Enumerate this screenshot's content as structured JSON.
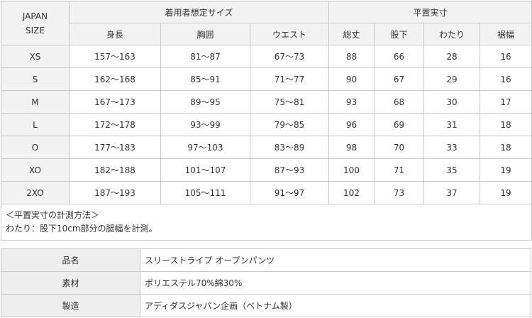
{
  "size_table": {
    "corner": "JAPAN\nSIZE",
    "group1": "着用者想定サイズ",
    "group2": "平置実寸",
    "columns": [
      "身長",
      "胸囲",
      "ウエスト",
      "総丈",
      "股下",
      "わたり",
      "裾幅"
    ],
    "rows": [
      [
        "XS",
        "157〜163",
        "81〜87",
        "67〜73",
        "88",
        "66",
        "28",
        "16"
      ],
      [
        "S",
        "162〜168",
        "85〜91",
        "71〜77",
        "90",
        "67",
        "29",
        "16"
      ],
      [
        "M",
        "167〜173",
        "89〜95",
        "75〜81",
        "93",
        "68",
        "30",
        "17"
      ],
      [
        "L",
        "172〜178",
        "93〜99",
        "79〜85",
        "96",
        "69",
        "31",
        "18"
      ],
      [
        "O",
        "177〜183",
        "97〜103",
        "83〜89",
        "98",
        "70",
        "33",
        "18"
      ],
      [
        "XO",
        "182〜188",
        "101〜107",
        "87〜93",
        "100",
        "71",
        "35",
        "19"
      ],
      [
        "2XO",
        "187〜193",
        "105〜111",
        "91〜97",
        "102",
        "73",
        "37",
        "19"
      ]
    ],
    "note_title": "＜平置実寸の計測方法＞",
    "note_text": "わたり：股下10cm部分の腿幅を計測。"
  },
  "info_table": [
    {
      "label": "品名",
      "value": "スリーストライプ オープンパンツ"
    },
    {
      "label": "素材",
      "value": "ポリエステル70%綿30%"
    },
    {
      "label": "製造",
      "value": "アディダスジャパン企画（ベトナム製）"
    }
  ]
}
